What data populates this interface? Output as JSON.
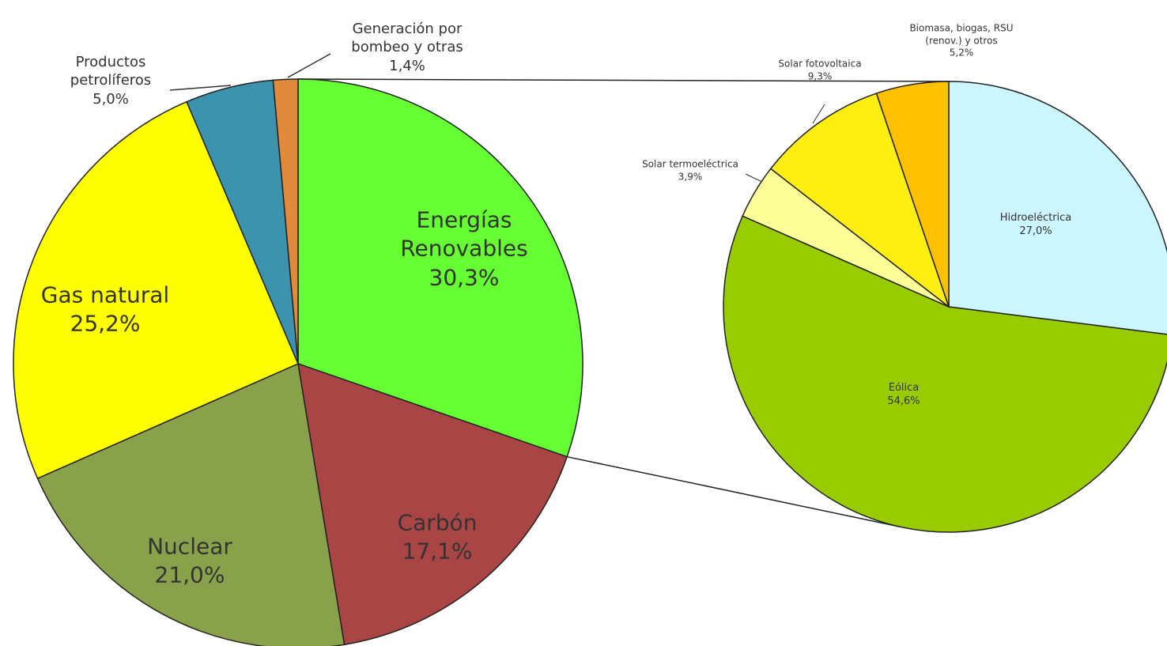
{
  "chart_data": [
    {
      "type": "pie",
      "categories": [
        "Energías Renovables",
        "Carbón",
        "Nuclear",
        "Gas natural",
        "Productos petrolíferos",
        "Generación por bombeo y otras"
      ],
      "values": [
        30.3,
        17.1,
        21.0,
        25.2,
        5.0,
        1.4
      ],
      "value_labels": [
        "30,3%",
        "17,1%",
        "21,0%",
        "25,2%",
        "5,0%",
        "1,4%"
      ],
      "colors": [
        "#66ff33",
        "#a94545",
        "#8aa14b",
        "#ffff00",
        "#3b93ae",
        "#e28a3c"
      ]
    },
    {
      "type": "pie",
      "categories": [
        "Hidroeléctrica",
        "Eólica",
        "Solar termoeléctrica",
        "Solar fotovoltaica",
        "Biomasa, biogas, RSU (renov.) y otros"
      ],
      "values": [
        27.0,
        54.6,
        3.9,
        9.3,
        5.2
      ],
      "value_labels": [
        "27,0%",
        "54,6%",
        "3,9%",
        "9,3%",
        "5,2%"
      ],
      "colors": [
        "#ccf6ff",
        "#99cc00",
        "#ffff99",
        "#ffee11",
        "#ffc000"
      ]
    }
  ]
}
